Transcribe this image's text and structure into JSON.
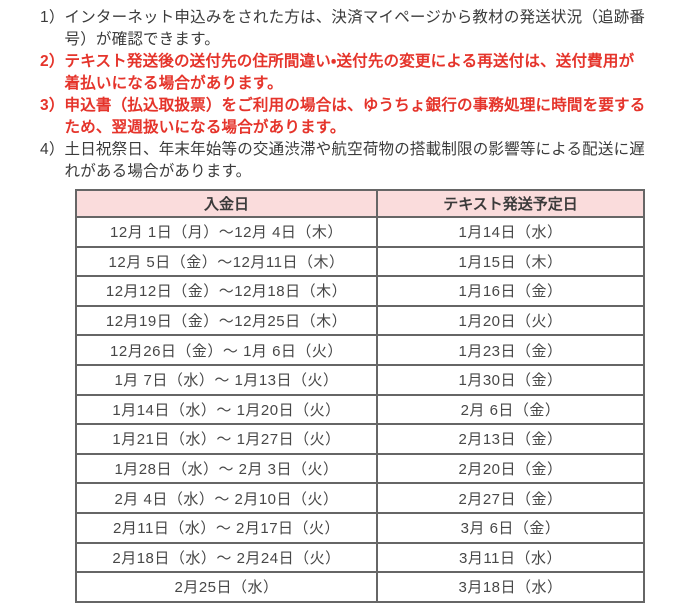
{
  "notes": [
    {
      "number": "1）",
      "emphasis": "normal",
      "lines": [
        "インターネット申込みをされた方は、決済マイページから教材の発送状況（追跡番",
        "号）が確認できます。"
      ]
    },
    {
      "number": "2）",
      "emphasis": "red-bold",
      "lines": [
        "テキスト発送後の送付先の住所間違い・送付先の変更による再送付は、送付費用が",
        "着払いになる場合があります。"
      ]
    },
    {
      "number": "3）",
      "emphasis": "red-bold",
      "lines": [
        "申込書（払込取扱票）をご利用の場合は、ゆうちょ銀行の事務処理に時間を要する",
        "ため、翌週扱いになる場合があります。"
      ]
    },
    {
      "number": "4）",
      "emphasis": "normal",
      "lines": [
        "土日祝祭日、年末年始等の交通渋滞や航空荷物の搭載制限の影響等による配送に遅",
        "れがある場合があります。"
      ]
    }
  ],
  "table": {
    "headers": [
      "入金日",
      "テキスト発送予定日"
    ],
    "rows": [
      [
        "12月 1日（月）～12月 4日（木）",
        "1月14日（水）"
      ],
      [
        "12月 5日（金）～12月11日（木）",
        "1月15日（木）"
      ],
      [
        "12月12日（金）～12月18日（木）",
        "1月16日（金）"
      ],
      [
        "12月19日（金）～12月25日（木）",
        "1月20日（火）"
      ],
      [
        "12月26日（金）～ 1月 6日（火）",
        "1月23日（金）"
      ],
      [
        "1月 7日（水）～ 1月13日（火）",
        "1月30日（金）"
      ],
      [
        "1月14日（水）～ 1月20日（火）",
        "2月 6日（金）"
      ],
      [
        "1月21日（水）～ 1月27日（火）",
        "2月13日（金）"
      ],
      [
        "1月28日（水）～ 2月 3日（火）",
        "2月20日（金）"
      ],
      [
        "2月 4日（水）～ 2月10日（火）",
        "2月27日（金）"
      ],
      [
        "2月11日（水）～ 2月17日（火）",
        "3月 6日（金）"
      ],
      [
        "2月18日（水）～ 2月24日（火）",
        "3月11日（水）"
      ],
      [
        "2月25日（水）",
        "3月18日（水）"
      ]
    ]
  },
  "colors": {
    "emphasis_red": "#e5342b",
    "header_pink": "#fadcdc",
    "border_gray": "#666666",
    "text_dark": "#3b3b3b",
    "background": "#ffffff"
  }
}
